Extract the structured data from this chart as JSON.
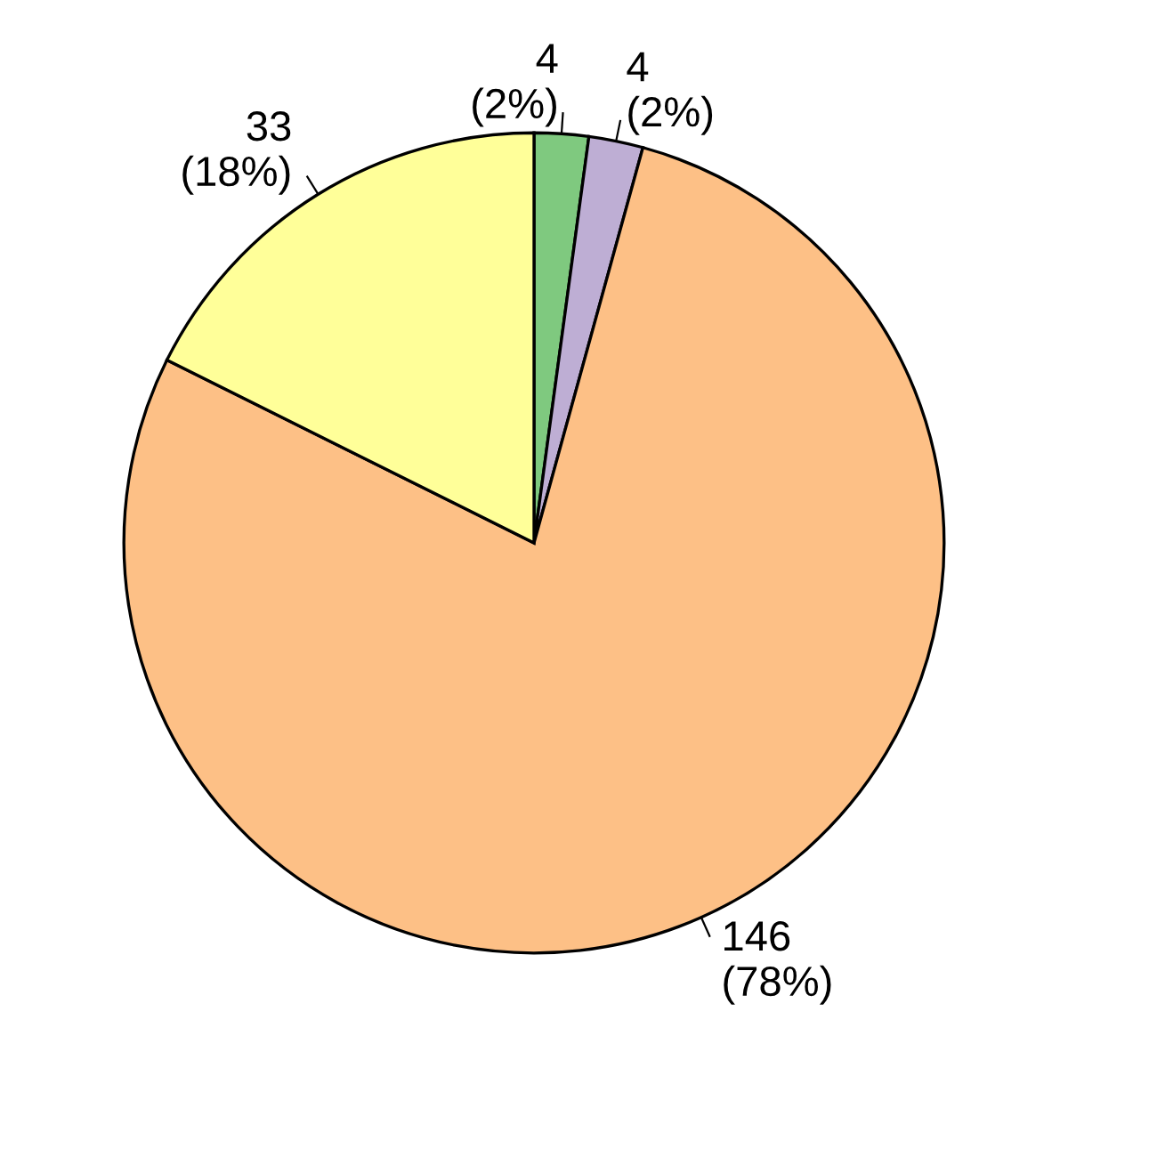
{
  "chart_data": {
    "type": "pie",
    "categories": [
      null,
      null,
      null,
      null
    ],
    "values": [
      4,
      4,
      146,
      33
    ],
    "value_labels": [
      "4\n(2%)",
      "4\n(2%)",
      "146\n(78%)",
      "33\n(18%)"
    ],
    "colors": [
      "#7fc97f",
      "#beaed4",
      "#fdc086",
      "#ffff99"
    ]
  }
}
